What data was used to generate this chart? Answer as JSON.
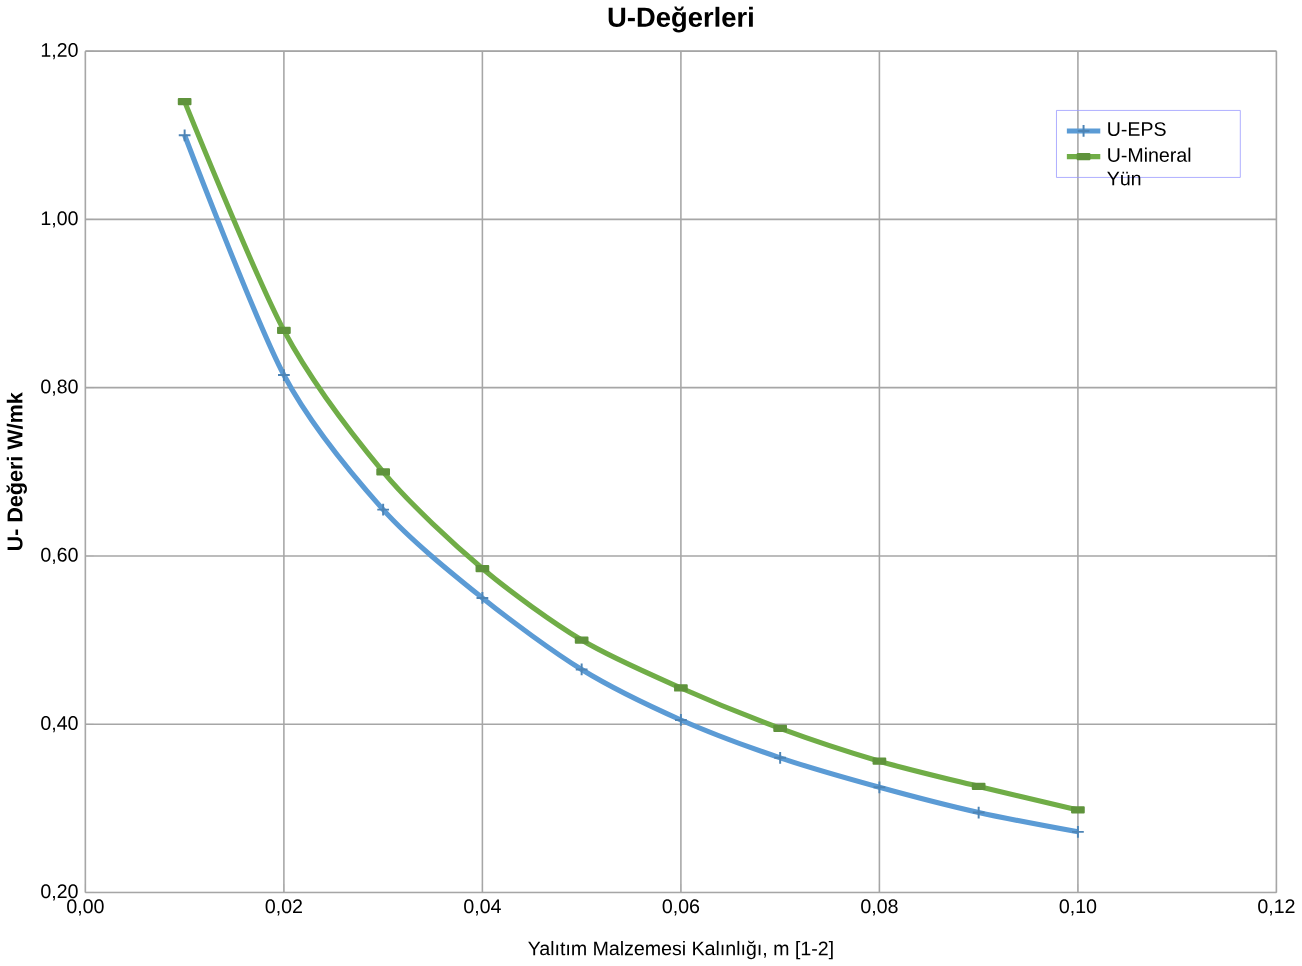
{
  "chart_data": {
    "type": "line",
    "title": "U-Değerleri",
    "xlabel": "Yalıtım Malzemesi Kalınlığı, m [1-2]",
    "ylabel": "U- Değeri W/mk",
    "x": [
      0.01,
      0.02,
      0.03,
      0.04,
      0.05,
      0.06,
      0.07,
      0.08,
      0.09,
      0.1
    ],
    "series": [
      {
        "name": "U-EPS",
        "color": "#5b9bd5",
        "marker": "cross",
        "values": [
          1.1,
          0.815,
          0.655,
          0.55,
          0.465,
          0.405,
          0.36,
          0.325,
          0.295,
          0.272
        ]
      },
      {
        "name": "U-Mineral Yün",
        "color": "#70ad47",
        "marker": "square",
        "values": [
          1.14,
          0.868,
          0.7,
          0.585,
          0.5,
          0.443,
          0.395,
          0.356,
          0.326,
          0.298
        ]
      }
    ],
    "xlim": [
      0,
      0.12
    ],
    "ylim": [
      0.2,
      1.2
    ],
    "xticks": [
      {
        "value": 0,
        "label": "0,00"
      },
      {
        "value": 0.02,
        "label": "0,02"
      },
      {
        "value": 0.04,
        "label": "0,04"
      },
      {
        "value": 0.06,
        "label": "0,06"
      },
      {
        "value": 0.08,
        "label": "0,08"
      },
      {
        "value": 0.1,
        "label": "0,10"
      },
      {
        "value": 0.12,
        "label": "0,12"
      }
    ],
    "yticks": [
      {
        "value": 0.2,
        "label": "0,20"
      },
      {
        "value": 0.4,
        "label": "0,40"
      },
      {
        "value": 0.6,
        "label": "0,60"
      },
      {
        "value": 0.8,
        "label": "0,80"
      },
      {
        "value": 1.0,
        "label": "1,00"
      },
      {
        "value": 1.2,
        "label": "1,20"
      }
    ],
    "grid": true,
    "legend": "top right",
    "line_style": "solid"
  }
}
